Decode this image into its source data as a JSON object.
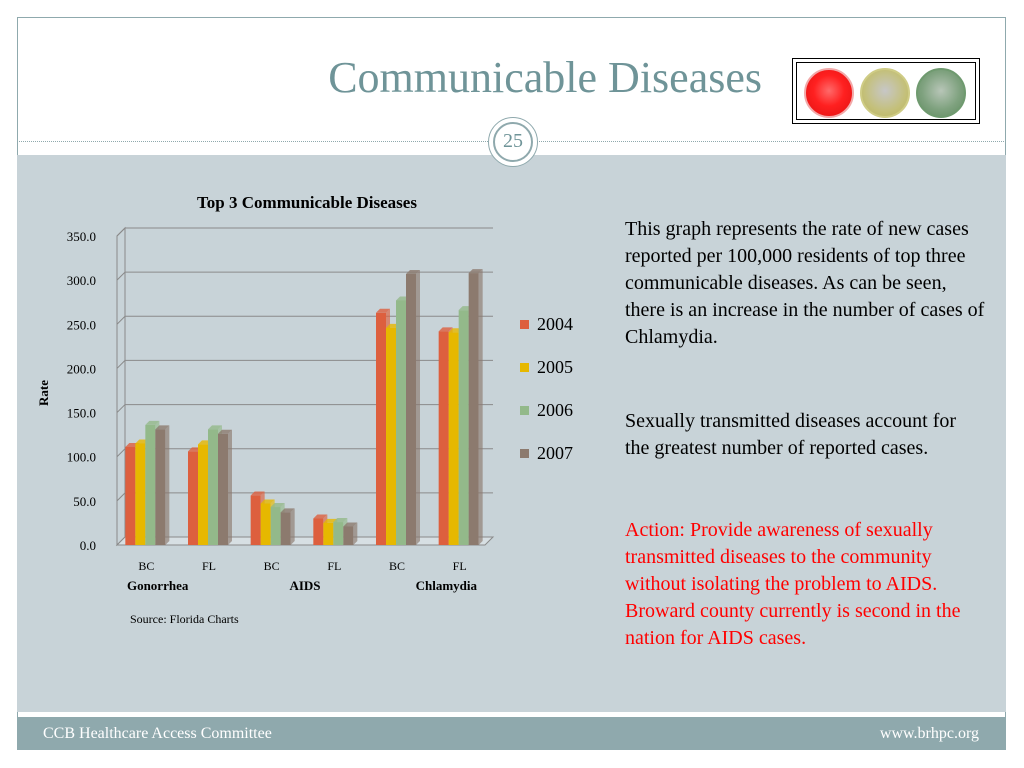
{
  "slide": {
    "title": "Communicable Diseases",
    "page_number": "25",
    "footer_left": "CCB Healthcare Access Committee",
    "footer_right": "www.brhpc.org"
  },
  "traffic_light": {
    "lights": [
      {
        "name": "red",
        "color": "#ff2020",
        "active": true
      },
      {
        "name": "yellow",
        "color": "#c4c07a",
        "active": false
      },
      {
        "name": "green",
        "color": "#7fa27f",
        "active": false
      }
    ]
  },
  "text": {
    "paragraph1": "This graph represents the rate of new cases reported per 100,000 residents of top three communicable diseases.  As can be seen, there is an increase in the number of cases of Chlamydia.",
    "paragraph2": "Sexually transmitted diseases account for  the greatest number of reported cases.",
    "paragraph3": "Action: Provide awareness of sexually transmitted diseases to the community without isolating the problem to AIDS.   Broward county currently is second in the nation  for AIDS cases."
  },
  "chart_data": {
    "type": "bar",
    "title": "Top 3 Communicable Diseases",
    "ylabel": "Rate",
    "xlabel": "",
    "ylim": [
      0,
      350
    ],
    "ytick_step": 50,
    "ytick_labels": [
      "0.0",
      "50.0",
      "100.0",
      "150.0",
      "200.0",
      "250.0",
      "300.0",
      "350.0"
    ],
    "categories": [
      "BC",
      "FL",
      "BC",
      "FL",
      "BC",
      "FL"
    ],
    "groups": [
      {
        "label": "Gonorrhea",
        "categories": [
          "BC",
          "FL"
        ]
      },
      {
        "label": "AIDS",
        "categories": [
          "BC",
          "FL"
        ]
      },
      {
        "label": "Chlamydia",
        "categories": [
          "BC",
          "FL"
        ]
      }
    ],
    "series": [
      {
        "name": "2004",
        "color": "#dd5f3e",
        "values": [
          111,
          106,
          56,
          30,
          263,
          242
        ]
      },
      {
        "name": "2005",
        "color": "#e6b800",
        "values": [
          115,
          114,
          47,
          25,
          246,
          241
        ]
      },
      {
        "name": "2006",
        "color": "#93b98a",
        "values": [
          136,
          131,
          43,
          26,
          277,
          266
        ]
      },
      {
        "name": "2007",
        "color": "#8c7a6e",
        "values": [
          131,
          126,
          37,
          21,
          307,
          308
        ]
      }
    ],
    "source_note": "Source: Florida Charts",
    "legend_position": "right",
    "grid": true
  }
}
